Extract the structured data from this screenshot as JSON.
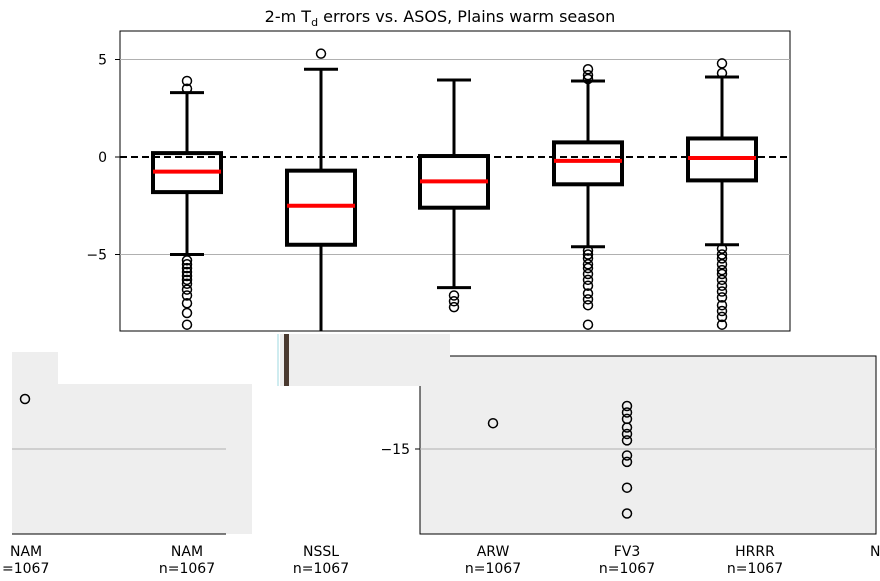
{
  "chart_data": {
    "type": "box",
    "title_main": "2-m T",
    "title_sub": "d",
    "title_rest": " errors vs. ASOS, Plains warm season",
    "ylabel": "",
    "ylim": [
      -19,
      6.5
    ],
    "yticks": [
      5,
      0,
      -5
    ],
    "ytick_labels": [
      "5",
      "0",
      "−5"
    ],
    "lower_ytick_labels": [
      "−15"
    ],
    "reference_line": 0,
    "grid": "horizontal",
    "colors": {
      "box": "#000000",
      "median": "#ff0000",
      "grid": "#b0b0b0",
      "panel": "#eeeeee"
    },
    "series": [
      {
        "label": "NAM",
        "sublabel": "n=1067",
        "q1": -1.8,
        "median": -0.75,
        "q3": 0.2,
        "whisker_low": -5.0,
        "whisker_high": 3.3,
        "outliers": [
          3.9,
          3.5,
          -5.3,
          -5.5,
          -5.7,
          -5.9,
          -6.1,
          -6.3,
          -6.5,
          -6.8,
          -7.1,
          -7.5,
          -8.0,
          -8.6
        ]
      },
      {
        "label": "NSSL",
        "sublabel": "n=1067",
        "q1": -4.5,
        "median": -2.5,
        "q3": -0.7,
        "whisker_low": -9.0,
        "whisker_high": 4.5,
        "outliers": [
          5.3
        ]
      },
      {
        "label": "ARW",
        "sublabel": "n=1067",
        "q1": -2.6,
        "median": -1.25,
        "q3": 0.05,
        "whisker_low": -6.7,
        "whisker_high": 3.95,
        "outliers": [
          -7.1,
          -7.4,
          -7.7,
          -13.8
        ]
      },
      {
        "label": "FV3",
        "sublabel": "n=1067",
        "q1": -1.4,
        "median": -0.2,
        "q3": 0.75,
        "whisker_low": -4.6,
        "whisker_high": 3.9,
        "outliers": [
          4.5,
          4.2,
          4.0,
          -4.8,
          -5.0,
          -5.2,
          -5.5,
          -5.7,
          -6.0,
          -6.3,
          -6.6,
          -7.0,
          -7.3,
          -7.6,
          -8.6,
          -13.0,
          -13.3,
          -13.6,
          -14.0,
          -14.3,
          -14.6,
          -15.3,
          -15.6,
          -16.8,
          -18.0
        ]
      },
      {
        "label": "HRRR",
        "sublabel": "n=1067",
        "q1": -1.2,
        "median": -0.05,
        "q3": 0.95,
        "whisker_low": -4.5,
        "whisker_high": 4.1,
        "outliers": [
          4.8,
          4.3,
          -4.7,
          -5.0,
          -5.2,
          -5.5,
          -5.8,
          -6.0,
          -6.3,
          -6.6,
          -6.9,
          -7.2,
          -7.6,
          -7.9,
          -8.2,
          -8.6,
          -9.0
        ]
      }
    ],
    "edge_labels": {
      "left_name": "NAM",
      "left_n": "=1067",
      "right_name": "N"
    }
  }
}
